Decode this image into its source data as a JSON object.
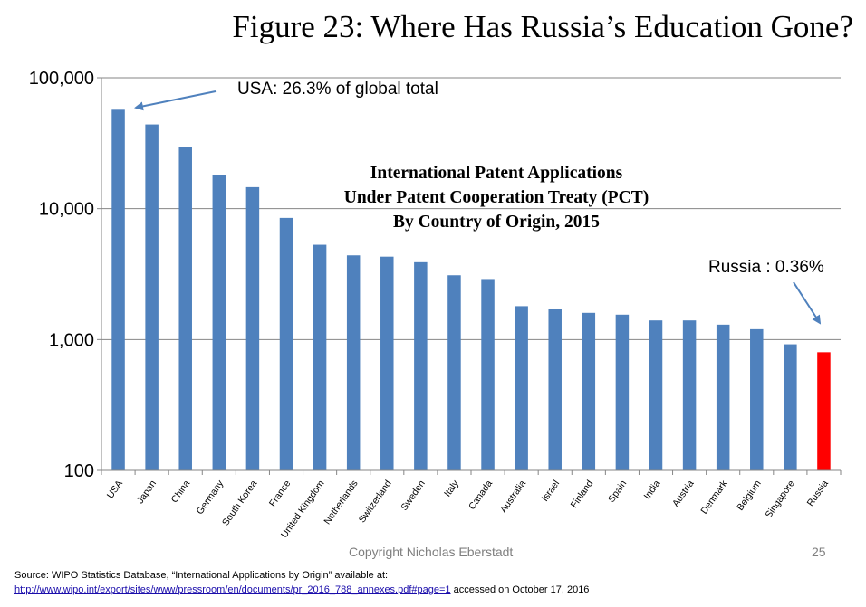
{
  "figure_title": "Figure 23: Where Has Russia’s Education Gone?",
  "chart_data": {
    "type": "bar",
    "title_lines": [
      "International Patent Applications",
      "Under Patent Cooperation Treaty (PCT)",
      "By Country of Origin, 2015"
    ],
    "y_scale": "log",
    "ylim": [
      100,
      100000
    ],
    "y_ticks": [
      {
        "value": 100,
        "label": "100"
      },
      {
        "value": 1000,
        "label": "1,000"
      },
      {
        "value": 10000,
        "label": "10,000"
      },
      {
        "value": 100000,
        "label": "100,000"
      }
    ],
    "grid": true,
    "categories": [
      "USA",
      "Japan",
      "China",
      "Germany",
      "South Korea",
      "France",
      "United Kingdom",
      "Netherlands",
      "Switzerland",
      "Sweden",
      "Italy",
      "Canada",
      "Australia",
      "Israel",
      "Finland",
      "Spain",
      "India",
      "Austria",
      "Denmark",
      "Belgium",
      "Singapore",
      "Russia"
    ],
    "values": [
      57000,
      44000,
      29800,
      18000,
      14600,
      8500,
      5300,
      4400,
      4300,
      3900,
      3100,
      2900,
      1800,
      1700,
      1600,
      1550,
      1400,
      1400,
      1300,
      1200,
      920,
      800
    ],
    "bar_colors": [
      "#4F81BD",
      "#4F81BD",
      "#4F81BD",
      "#4F81BD",
      "#4F81BD",
      "#4F81BD",
      "#4F81BD",
      "#4F81BD",
      "#4F81BD",
      "#4F81BD",
      "#4F81BD",
      "#4F81BD",
      "#4F81BD",
      "#4F81BD",
      "#4F81BD",
      "#4F81BD",
      "#4F81BD",
      "#4F81BD",
      "#4F81BD",
      "#4F81BD",
      "#4F81BD",
      "#FF0000"
    ],
    "annotations": {
      "usa": "USA: 26.3% of  global total",
      "russia": "Russia : 0.36%"
    }
  },
  "footer": {
    "copyright": "Copyright Nicholas Eberstadt",
    "page_number": "25",
    "source_line1": "Source: WIPO Statistics Database, “International Applications by Origin” available at:",
    "source_link": "http://www.wipo.int/export/sites/www/pressroom/en/documents/pr_2016_788_annexes.pdf#page=1",
    "source_suffix": " accessed on October 17, 2016"
  }
}
